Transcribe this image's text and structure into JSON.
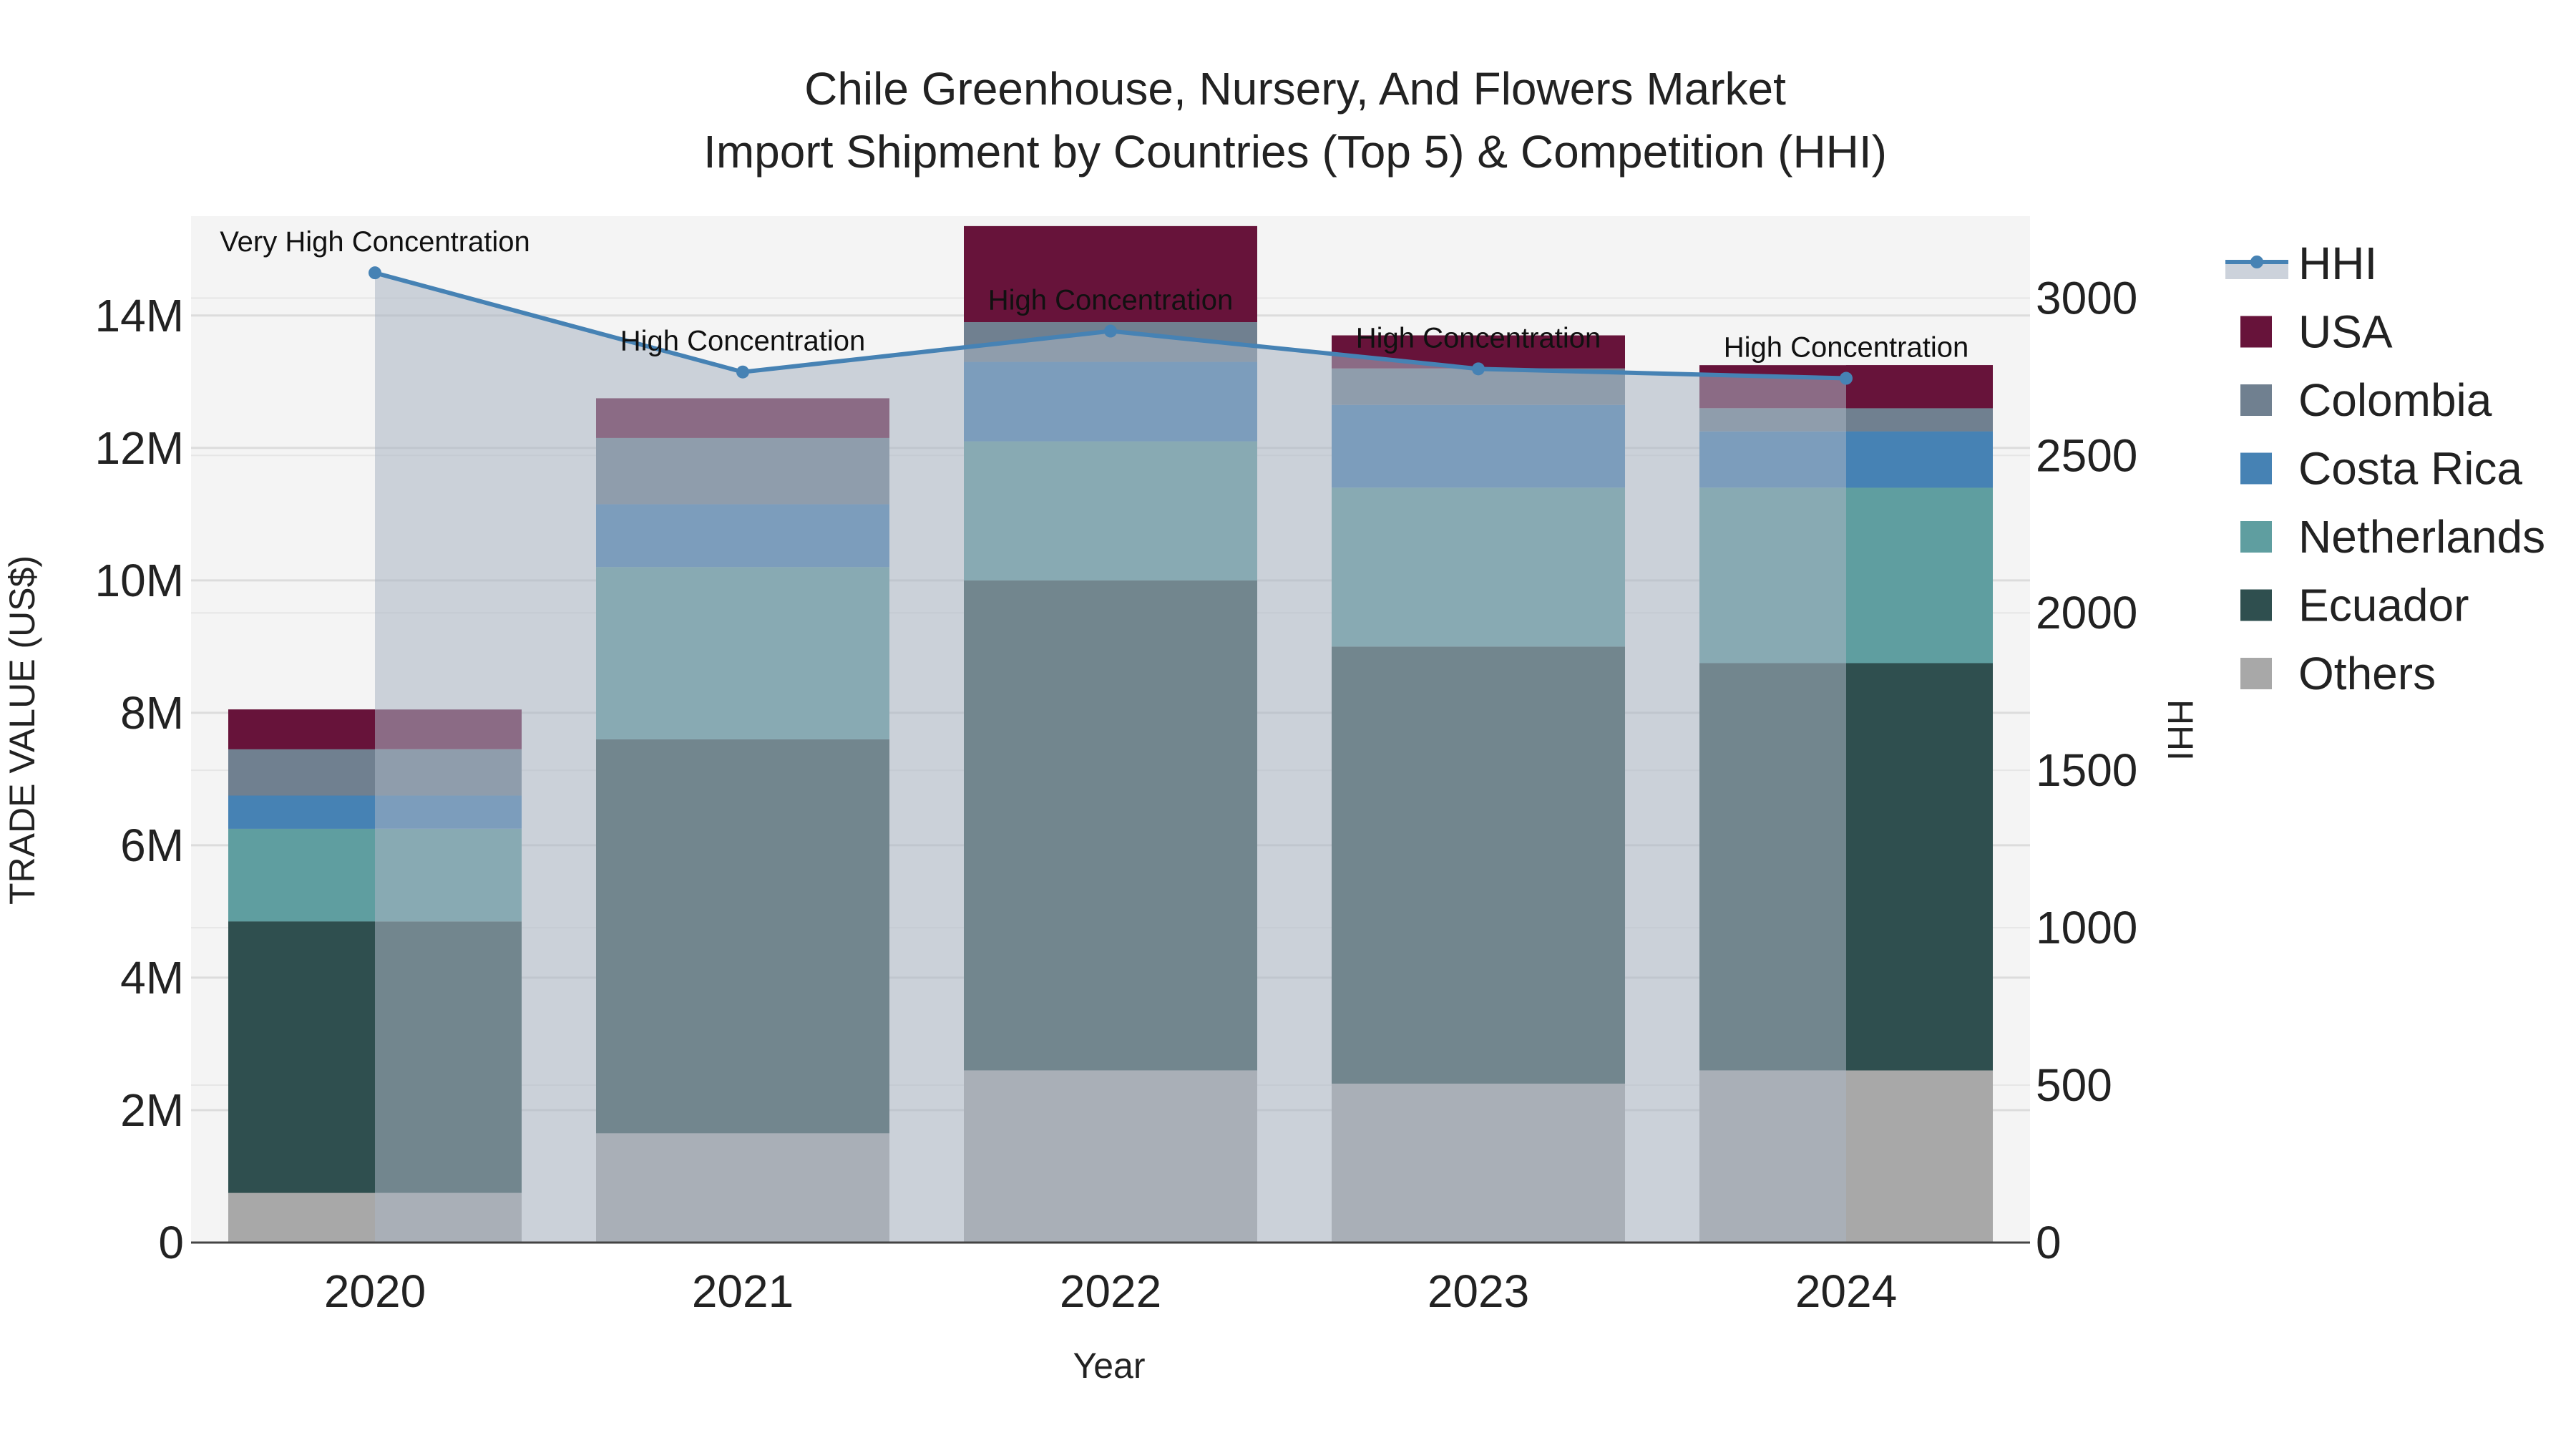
{
  "chart_data": {
    "type": "bar",
    "barmode": "stack",
    "title_line1": "Chile Greenhouse, Nursery, And Flowers Market",
    "title_line2": "Import Shipment by Countries (Top 5) & Competition (HHI)",
    "xlabel": "Year",
    "ylabel": "TRADE VALUE (US$)",
    "y2label": "HHI",
    "categories": [
      "2020",
      "2021",
      "2022",
      "2023",
      "2024"
    ],
    "ylim": [
      0,
      15500000
    ],
    "y2lim": [
      0,
      3260
    ],
    "yticks": [
      0,
      2000000,
      4000000,
      6000000,
      8000000,
      10000000,
      12000000,
      14000000
    ],
    "ytick_labels": [
      "0",
      "2M",
      "4M",
      "6M",
      "8M",
      "10M",
      "12M",
      "14M"
    ],
    "y2ticks": [
      0,
      500,
      1000,
      1500,
      2000,
      2500,
      3000
    ],
    "y2tick_labels": [
      "0",
      "500",
      "1000",
      "1500",
      "2000",
      "2500",
      "3000"
    ],
    "series": [
      {
        "name": "Others",
        "color": "#a8a8a8",
        "values": [
          750000,
          1650000,
          2600000,
          2400000,
          2600000
        ]
      },
      {
        "name": "Ecuador",
        "color": "#2f4f4f",
        "values": [
          4100000,
          5950000,
          7400000,
          6600000,
          6150000
        ]
      },
      {
        "name": "Netherlands",
        "color": "#5f9ea0",
        "values": [
          1400000,
          2600000,
          2100000,
          2400000,
          2650000
        ]
      },
      {
        "name": "Costa Rica",
        "color": "#4682b4",
        "values": [
          500000,
          950000,
          1200000,
          1250000,
          850000
        ]
      },
      {
        "name": "Colombia",
        "color": "#708090",
        "values": [
          700000,
          1000000,
          600000,
          550000,
          350000
        ]
      },
      {
        "name": "USA",
        "color": "#67133a",
        "values": [
          600000,
          600000,
          1450000,
          500000,
          650000
        ]
      }
    ],
    "hhi": {
      "name": "HHI",
      "color": "#4682b4",
      "values": [
        3080,
        2765,
        2895,
        2775,
        2745
      ],
      "annotations": [
        "Very High Concentration",
        "High Concentration",
        "High Concentration",
        "High Concentration",
        "High Concentration"
      ]
    },
    "legend_order": [
      "HHI",
      "USA",
      "Colombia",
      "Costa Rica",
      "Netherlands",
      "Ecuador",
      "Others"
    ],
    "legend_position": "right"
  }
}
